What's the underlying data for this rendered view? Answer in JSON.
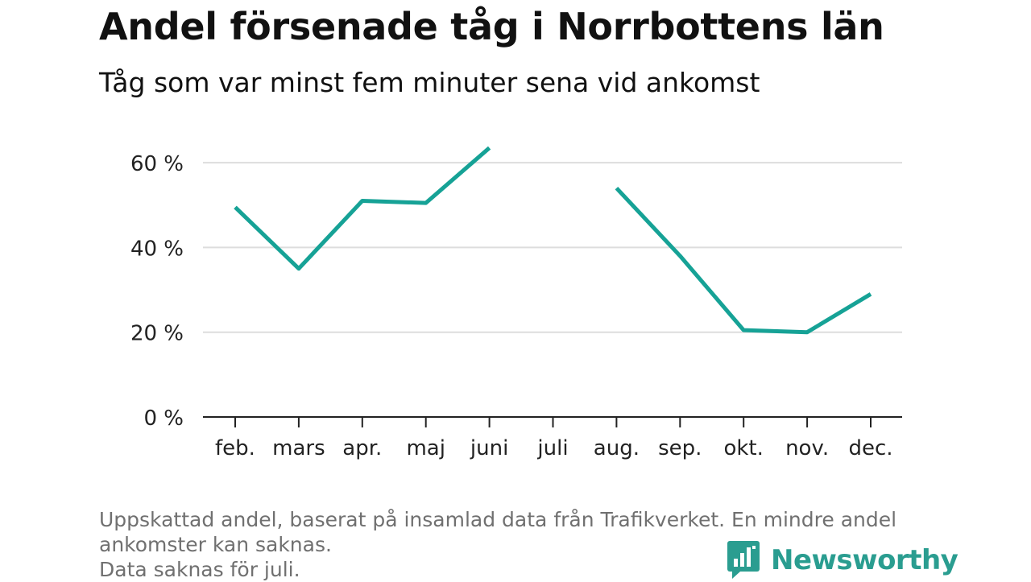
{
  "title": "Andel försenade tåg i Norrbottens län",
  "subtitle": "Tåg som var minst fem minuter sena vid ankomst",
  "notes": [
    "Uppskattad andel, baserat på insamlad data från Trafikverket. En mindre andel",
    "ankomster kan saknas.",
    "Data saknas för juli."
  ],
  "brand": {
    "name": "Newsworthy",
    "color": "#2a9d90",
    "icon": "newsworthy-logo-icon"
  },
  "colors": {
    "line": "#16a296",
    "grid": "#dddddd",
    "axis": "#222222",
    "text": "#222222"
  },
  "chart_data": {
    "type": "line",
    "title": "Andel försenade tåg i Norrbottens län",
    "subtitle": "Tåg som var minst fem minuter sena vid ankomst",
    "categories": [
      "feb.",
      "mars",
      "apr.",
      "maj",
      "juni",
      "juli",
      "aug.",
      "sep.",
      "okt.",
      "nov.",
      "dec."
    ],
    "series": [
      {
        "values": [
          49.5,
          35,
          51,
          50.5,
          63.5,
          null,
          54,
          38,
          20.5,
          20,
          29
        ]
      }
    ],
    "ylim": [
      0,
      68
    ],
    "yticks": [
      0,
      20,
      40,
      60
    ],
    "ytick_labels": [
      "0 %",
      "20 %",
      "40 %",
      "60 %"
    ],
    "xlabel": "",
    "ylabel": "",
    "grid": "horizontal",
    "legend": "none"
  }
}
